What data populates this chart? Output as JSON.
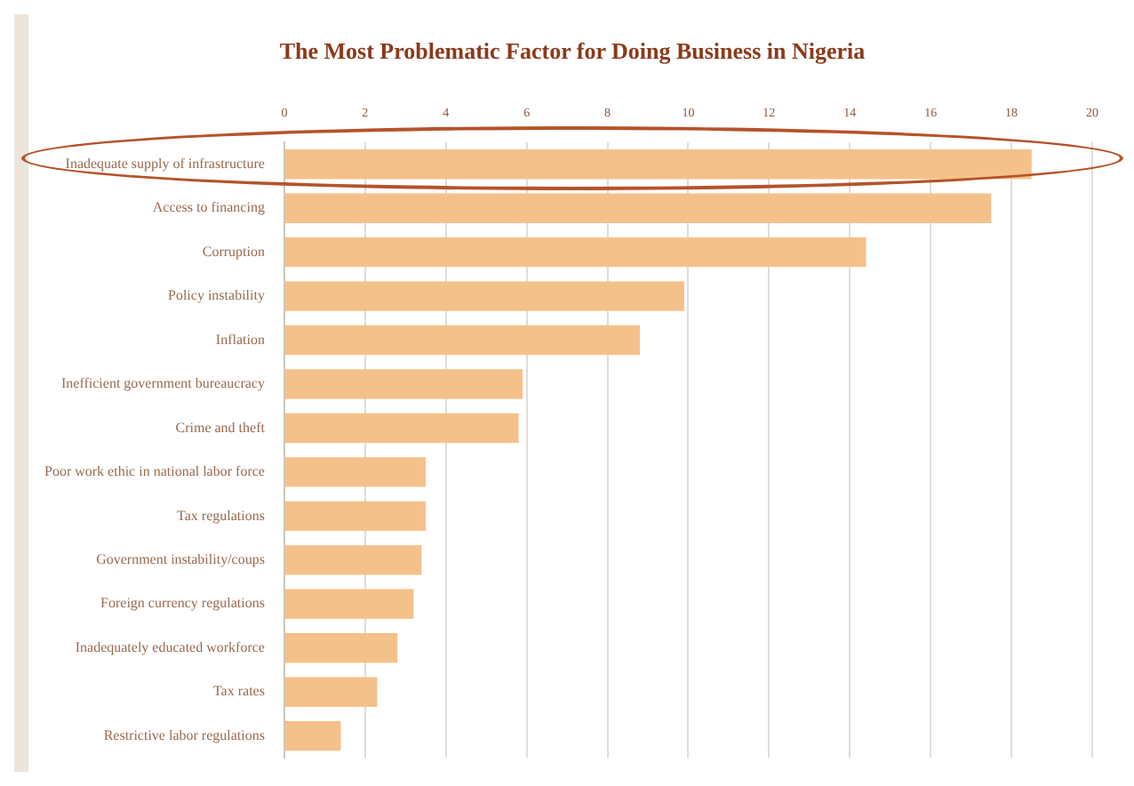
{
  "chart_data": {
    "type": "bar",
    "orientation": "horizontal",
    "title": "The Most Problematic Factor for Doing Business in Nigeria",
    "categories": [
      "Inadequate supply of infrastructure",
      "Access to financing",
      "Corruption",
      "Policy instability",
      "Inflation",
      "Inefficient government bureaucracy",
      "Crime and theft",
      "Poor work ethic in national labor force",
      "Tax regulations",
      "Government instability/coups",
      "Foreign currency regulations",
      "Inadequately educated workforce",
      "Tax rates",
      "Restrictive labor regulations"
    ],
    "values": [
      18.5,
      17.5,
      14.4,
      9.9,
      8.8,
      5.9,
      5.8,
      3.5,
      3.5,
      3.4,
      3.2,
      2.8,
      2.3,
      1.4
    ],
    "color": "#f5c18a",
    "xlim": [
      0,
      20
    ],
    "xticks": [
      0,
      2,
      4,
      6,
      8,
      10,
      12,
      14,
      16,
      18,
      20
    ],
    "grid": "x",
    "legend": false
  }
}
